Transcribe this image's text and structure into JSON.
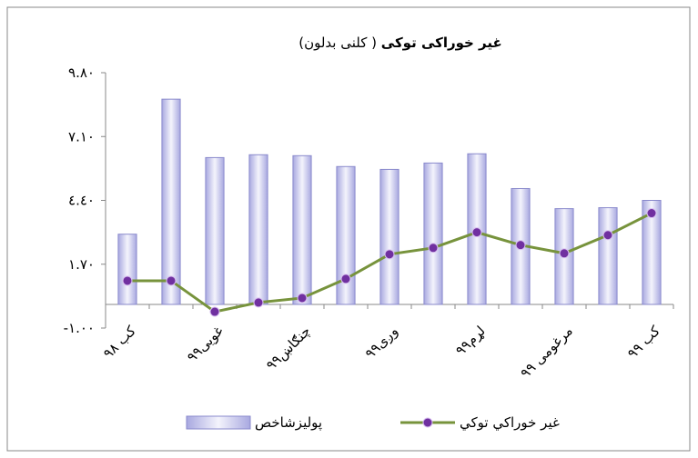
{
  "chart_data": {
    "type": "bar_line",
    "title": "غیر خوراکی توکی",
    "subtitle": "( کلنی بدلون)",
    "categories": [
      "کب ۹۸",
      null,
      "غویی۹۹",
      null,
      "چنګاښ۹۹",
      null,
      "وږی۹۹",
      null,
      "لړم۹۹",
      null,
      "مرغومی ۹۹",
      null,
      "کب ۹۹"
    ],
    "series": [
      {
        "name": "پولیزشاخص",
        "type": "bar",
        "color": "#c4c4ee",
        "values": [
          2.97,
          8.68,
          6.21,
          6.33,
          6.29,
          5.83,
          5.71,
          5.98,
          6.37,
          4.9,
          4.05,
          4.09,
          4.4
        ]
      },
      {
        "name": "غير خوراكي توكي",
        "type": "line",
        "color": "#77933c",
        "marker_color": "#7030a0",
        "values": [
          1.0,
          1.0,
          -0.31,
          0.08,
          0.27,
          1.08,
          2.12,
          2.39,
          3.05,
          2.51,
          2.16,
          2.93,
          3.86
        ]
      }
    ],
    "ylim": [
      -1,
      9.8
    ],
    "yticks": [
      {
        "value": -1,
        "label": "-۱.۰۰"
      },
      {
        "value": 1.7,
        "label": "۱.۷۰"
      },
      {
        "value": 4.4,
        "label": "٤.٤٠"
      },
      {
        "value": 7.1,
        "label": "۷.۱۰"
      },
      {
        "value": 9.8,
        "label": "۹.۸۰"
      }
    ],
    "legend": "bottom"
  }
}
